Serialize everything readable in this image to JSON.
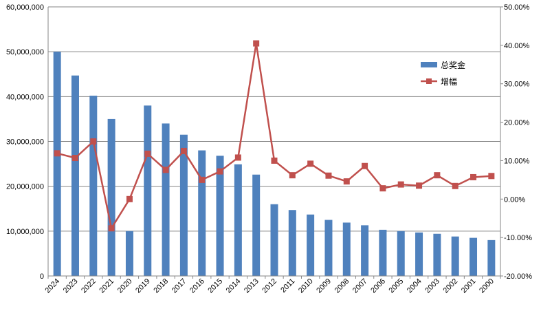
{
  "chart_data": {
    "type": "bar",
    "categories": [
      "2024",
      "2023",
      "2022",
      "2021",
      "2020",
      "2019",
      "2018",
      "2017",
      "2016",
      "2015",
      "2014",
      "2013",
      "2012",
      "2011",
      "2010",
      "2009",
      "2008",
      "2007",
      "2006",
      "2005",
      "2004",
      "2003",
      "2002",
      "2001",
      "2000"
    ],
    "series": [
      {
        "name": "总奖金",
        "type": "bar",
        "axis": "left",
        "color": "#4f81bd",
        "values": [
          50000000,
          44700000,
          40200000,
          35000000,
          10000000,
          38000000,
          34000000,
          31500000,
          28000000,
          26800000,
          24900000,
          22600000,
          16000000,
          14700000,
          13700000,
          12500000,
          11900000,
          11300000,
          10300000,
          10000000,
          9700000,
          9400000,
          8800000,
          8500000,
          8000000
        ]
      },
      {
        "name": "增幅",
        "type": "line",
        "axis": "right",
        "color": "#c0504d",
        "values": [
          11.9,
          10.7,
          15.0,
          -7.6,
          0.0,
          11.8,
          7.6,
          12.5,
          5.0,
          7.2,
          10.8,
          40.5,
          10.0,
          6.2,
          9.2,
          6.1,
          4.6,
          8.6,
          2.8,
          3.8,
          3.5,
          6.2,
          3.4,
          5.7,
          6.0
        ]
      }
    ],
    "y_left": {
      "min": 0,
      "max": 60000000,
      "ticks": [
        0,
        10000000,
        20000000,
        30000000,
        40000000,
        50000000,
        60000000
      ],
      "tick_labels": [
        "0",
        "10,000,000",
        "20,000,000",
        "30,000,000",
        "40,000,000",
        "50,000,000",
        "60,000,000"
      ]
    },
    "y_right": {
      "min": -20,
      "max": 50,
      "ticks": [
        -20,
        -10,
        0,
        10,
        20,
        30,
        40,
        50
      ],
      "tick_labels": [
        "-20.00%",
        "-10.00%",
        "0.00%",
        "10.00%",
        "20.00%",
        "30.00%",
        "40.00%",
        "50.00%"
      ]
    },
    "grid": true,
    "legend_position": "top-right",
    "title": "",
    "xlabel": "",
    "ylabel": ""
  }
}
